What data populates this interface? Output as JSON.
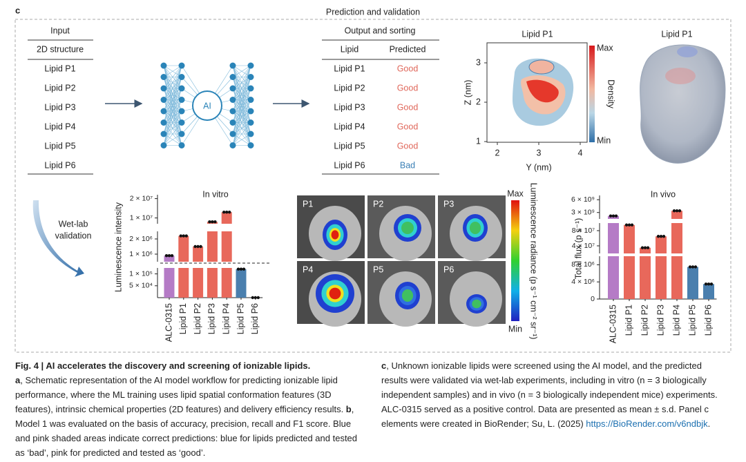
{
  "panel_label": "c",
  "panel_title": "Prediction and validation",
  "input": {
    "header": "Input",
    "subheader": "2D structure",
    "rows": [
      "Lipid P1",
      "Lipid P2",
      "Lipid P3",
      "Lipid P4",
      "Lipid P5",
      "Lipid P6"
    ]
  },
  "network_label": "AI",
  "output": {
    "header": "Output and sorting",
    "columns": [
      "Lipid",
      "Predicted"
    ],
    "rows": [
      [
        "Lipid P1",
        "Good"
      ],
      [
        "Lipid P2",
        "Good"
      ],
      [
        "Lipid P3",
        "Good"
      ],
      [
        "Lipid P4",
        "Good"
      ],
      [
        "Lipid P5",
        "Good"
      ],
      [
        "Lipid P6",
        "Bad"
      ]
    ]
  },
  "density": {
    "title": "Lipid P1",
    "xlabel": "Y (nm)",
    "ylabel": "Z (nm)",
    "xticks": [
      2,
      3,
      4
    ],
    "yticks": [
      1,
      2,
      3
    ],
    "colorbar_max": "Max",
    "colorbar_label": "Density",
    "colorbar_min": "Min"
  },
  "surface_title": "Lipid P1",
  "wetlab": [
    "Wet-lab",
    "validation"
  ],
  "imaging": {
    "panels": [
      "P1",
      "P2",
      "P3",
      "P4",
      "P5",
      "P6"
    ],
    "colorbar_max": "Max",
    "colorbar_min": "Min",
    "colorbar_label": "Luminescence radiance (p s⁻¹ cm⁻² sr⁻¹)"
  },
  "chart_data": [
    {
      "type": "bar",
      "title": "In vitro",
      "ylabel": "Luminescence intensity",
      "categories": [
        "ALC-0315",
        "Lipid P1",
        "Lipid P2",
        "Lipid P3",
        "Lipid P4",
        "Lipid P5",
        "Lipid P6"
      ],
      "values": [
        900000,
        2200000,
        1500000,
        8000000,
        13000000,
        120000,
        0
      ],
      "colors": [
        "#b57bc6",
        "#e8685b",
        "#e8685b",
        "#e8685b",
        "#e8685b",
        "#4a7fae",
        "#4a7fae"
      ],
      "segments": [
        {
          "ylim": [
            0,
            125000
          ],
          "yticks": [
            {
              "value": 50000,
              "label": "5 × 10⁴"
            },
            {
              "value": 100000,
              "label": "1 × 10⁵"
            }
          ]
        },
        {
          "ylim": [
            500000,
            2500000
          ],
          "yticks": [
            {
              "value": 1000000,
              "label": "1 × 10⁶"
            },
            {
              "value": 2000000,
              "label": "2 × 10⁶"
            }
          ]
        },
        {
          "ylim": [
            7000000,
            22000000
          ],
          "yticks": [
            {
              "value": 10000000,
              "label": "1 × 10⁷"
            },
            {
              "value": 20000000,
              "label": "2 × 10⁷"
            }
          ]
        }
      ]
    },
    {
      "type": "bar",
      "title": "In vivo",
      "ylabel": "Total flux (p s⁻¹)",
      "categories": [
        "ALC-0315",
        "Lipid P1",
        "Lipid P2",
        "Lipid P3",
        "Lipid P4",
        "Lipid P5",
        "Lipid P6"
      ],
      "values": [
        2200000000,
        95000000,
        35000000,
        65000000,
        3400000000,
        7500000,
        3500000
      ],
      "colors": [
        "#b57bc6",
        "#e8685b",
        "#e8685b",
        "#e8685b",
        "#e8685b",
        "#4a7fae",
        "#4a7fae"
      ],
      "segments": [
        {
          "ylim": [
            0,
            10000000
          ],
          "yticks": [
            0,
            {
              "value": 4000000,
              "label": "4 × 10⁶"
            },
            {
              "value": 8000000,
              "label": "8 × 10⁶"
            }
          ]
        },
        {
          "ylim": [
            20000000,
            100000000
          ],
          "yticks": [
            {
              "value": 40000000,
              "label": "4 × 10⁷"
            },
            {
              "value": 80000000,
              "label": "8 × 10⁷"
            }
          ]
        },
        {
          "ylim": [
            1500000000,
            7000000000
          ],
          "yticks": [
            {
              "value": 3000000000,
              "label": "3 × 10⁹"
            },
            {
              "value": 6000000000,
              "label": "6 × 10⁹"
            }
          ]
        }
      ]
    }
  ],
  "caption": {
    "title": "Fig. 4 | AI accelerates the discovery and screening of ionizable lipids.",
    "parts": [
      {
        "label": "a",
        "text": ", Schematic representation of the AI model workflow for predicting ionizable lipid performance, where the ML training uses lipid spatial conformation features (3D features), intrinsic chemical properties (2D features) and delivery efficiency results. "
      },
      {
        "label": "b",
        "text": ", Model 1 was evaluated on the basis of accuracy, precision, recall and F1 score. Blue and pink shaded areas indicate correct predictions: blue for lipids predicted and tested as ‘bad’, pink for predicted and tested as ‘good’."
      },
      {
        "label": "c",
        "text": ", Unknown ionizable lipids were screened using the AI model, and the predicted results were validated via wet-lab experiments, including in vitro (n = 3 biologically independent samples) and in vivo (n = 3 biologically independent mice) experiments. ALC-0315 served as a positive control. Data are presented as mean ± s.d. Panel c elements were created in BioRender; Su, L. (2025) "
      }
    ],
    "link": "https://BioRender.com/v6ndbjk",
    "suffix": "."
  }
}
